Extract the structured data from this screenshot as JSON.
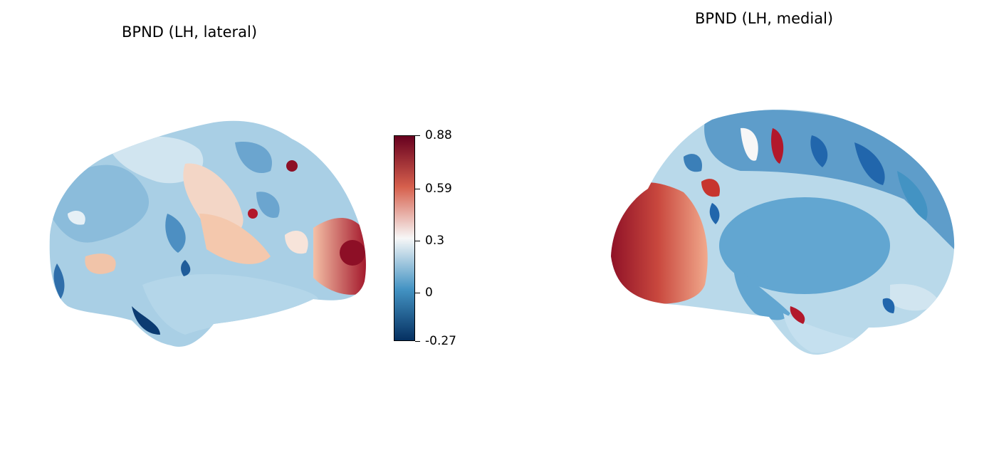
{
  "figure": {
    "panels": [
      {
        "title": "BPND (LH, lateral)",
        "view": "lateral"
      },
      {
        "title": "BPND (LH, medial)",
        "view": "medial"
      }
    ]
  },
  "colorbar": {
    "colormap": "RdBu_r",
    "min": -0.27,
    "max": 0.88,
    "ticks": [
      "0.88",
      "0.59",
      "0.3",
      "0",
      "-0.27"
    ],
    "colors": {
      "high": "#67001f",
      "mid_high": "#d6604d",
      "mid": "#f7f7f7",
      "mid_low": "#4393c3",
      "low": "#053061"
    }
  }
}
